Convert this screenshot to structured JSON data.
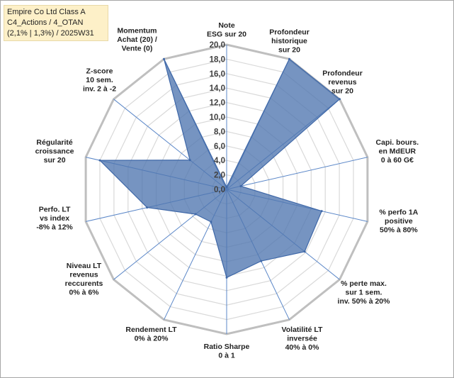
{
  "info": {
    "line1": "Empire Co Ltd Class A",
    "line2": "C4_Actions / 4_OTAN",
    "line3": "(2,1% | 1,3%) / 2025W31"
  },
  "chart_data": {
    "type": "radar",
    "rlim": [
      0,
      20
    ],
    "tick_step": 2,
    "ticks": [
      "0,0",
      "2,0",
      "4,0",
      "6,0",
      "8,0",
      "10,0",
      "12,0",
      "14,0",
      "16,0",
      "18,0",
      "20,0"
    ],
    "grid": true,
    "categories": [
      [
        "Note",
        "ESG sur 20"
      ],
      [
        "Profondeur",
        "historique",
        "sur 20"
      ],
      [
        "Profondeur",
        "revenus",
        "sur 20"
      ],
      [
        "Capi. bours.",
        "en MdEUR",
        "0 à 60 G€"
      ],
      [
        "% perfo 1A",
        "positive",
        "50% à 80%"
      ],
      [
        "% perte max.",
        "sur 1 sem.",
        "inv. 50% à 20%"
      ],
      [
        "Volatilité LT",
        "inversée",
        "40% à 0%"
      ],
      [
        "Ratio Sharpe",
        "0 à 1"
      ],
      [
        "Rendement LT",
        "0% à 20%"
      ],
      [
        "Niveau LT",
        "revenus",
        "reccurents",
        "0% à 6%"
      ],
      [
        "Perfo. LT",
        "vs index",
        "-8% à 12%"
      ],
      [
        "Régularité",
        "croissance",
        "sur 20"
      ],
      [
        "Z-score",
        "10 sem.",
        "inv. 2 à -2"
      ],
      [
        "Momentum",
        "Achat (20) /",
        "Vente (0)"
      ]
    ],
    "series": [
      {
        "values": [
          0.3,
          20,
          20,
          2.0,
          13.5,
          13.8,
          11.0,
          12.2,
          5.0,
          5.5,
          11.3,
          18.0,
          6.5,
          20
        ],
        "color": "#4f76b0",
        "fill_opacity": 0.78
      }
    ]
  }
}
